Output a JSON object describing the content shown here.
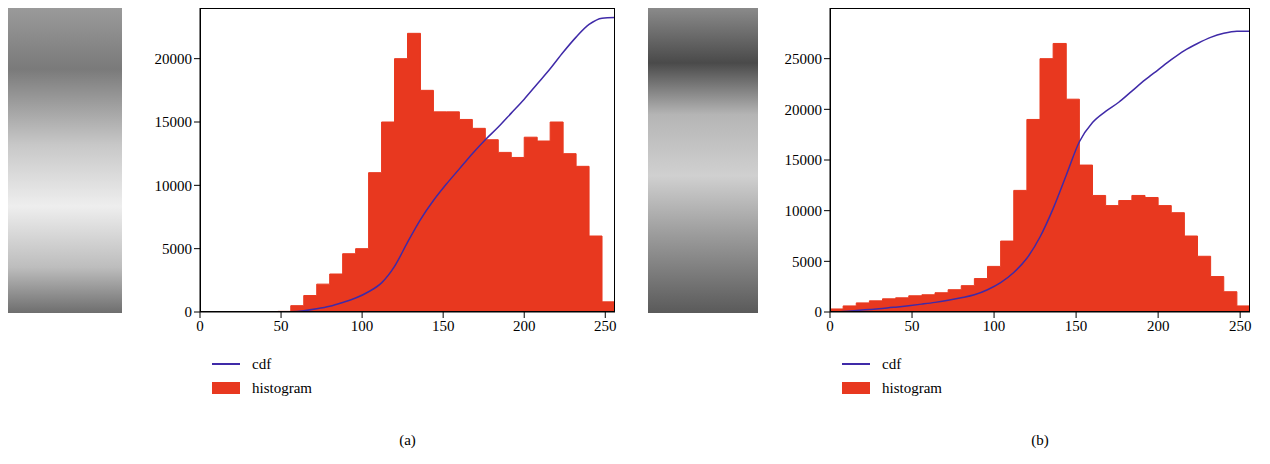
{
  "chart_data": [
    {
      "type": "histogram",
      "title": "(a)",
      "legend": "bottom",
      "grid": false,
      "xlim": [
        0,
        256
      ],
      "xticks": [
        0,
        50,
        100,
        150,
        200,
        250
      ],
      "ylim": [
        0,
        24000
      ],
      "yticks": [
        0,
        5000,
        10000,
        15000,
        20000
      ],
      "series": [
        {
          "name": "cdf",
          "type": "line",
          "color": "#3f2aa8",
          "x": [
            0,
            8,
            16,
            24,
            32,
            40,
            48,
            56,
            64,
            72,
            80,
            88,
            96,
            104,
            112,
            120,
            128,
            136,
            144,
            152,
            160,
            168,
            176,
            184,
            192,
            200,
            208,
            216,
            224,
            232,
            240,
            248,
            256
          ],
          "values": [
            0,
            0,
            0,
            0,
            0,
            0,
            0,
            20,
            100,
            250,
            450,
            750,
            1100,
            1600,
            2300,
            3600,
            5500,
            7300,
            8800,
            10100,
            11300,
            12500,
            13600,
            14600,
            15700,
            16800,
            18000,
            19200,
            20500,
            21700,
            22700,
            23200,
            23250
          ]
        },
        {
          "name": "histogram",
          "type": "histogram",
          "color": "#e8381f",
          "bins": [
            0,
            8,
            16,
            24,
            32,
            40,
            48,
            56,
            64,
            72,
            80,
            88,
            96,
            104,
            112,
            120,
            128,
            136,
            144,
            152,
            160,
            168,
            176,
            184,
            192,
            200,
            208,
            216,
            224,
            232,
            240,
            248,
            256
          ],
          "values": [
            0,
            0,
            0,
            0,
            0,
            0,
            50,
            500,
            1300,
            2200,
            3000,
            4600,
            5000,
            11000,
            15000,
            20000,
            22000,
            17500,
            15800,
            15800,
            15200,
            14500,
            13600,
            12600,
            12200,
            13800,
            13500,
            15000,
            12500,
            11500,
            6000,
            800
          ]
        }
      ]
    },
    {
      "type": "histogram",
      "title": "(b)",
      "legend": "bottom",
      "grid": false,
      "xlim": [
        0,
        256
      ],
      "xticks": [
        0,
        50,
        100,
        150,
        200,
        250
      ],
      "ylim": [
        0,
        30000
      ],
      "yticks": [
        0,
        5000,
        10000,
        15000,
        20000,
        25000
      ],
      "series": [
        {
          "name": "cdf",
          "type": "line",
          "color": "#3f2aa8",
          "x": [
            0,
            8,
            16,
            24,
            32,
            40,
            48,
            56,
            64,
            72,
            80,
            88,
            96,
            104,
            112,
            120,
            128,
            136,
            144,
            152,
            160,
            168,
            176,
            184,
            192,
            200,
            208,
            216,
            224,
            232,
            240,
            248,
            256
          ],
          "values": [
            0,
            60,
            150,
            250,
            350,
            480,
            620,
            780,
            950,
            1150,
            1400,
            1700,
            2200,
            2900,
            3900,
            5300,
            7400,
            10200,
            13500,
            16800,
            18700,
            19800,
            20700,
            21800,
            22900,
            23900,
            24900,
            25800,
            26500,
            27100,
            27500,
            27700,
            27700
          ]
        },
        {
          "name": "histogram",
          "type": "histogram",
          "color": "#e8381f",
          "bins": [
            0,
            8,
            16,
            24,
            32,
            40,
            48,
            56,
            64,
            72,
            80,
            88,
            96,
            104,
            112,
            120,
            128,
            136,
            144,
            152,
            160,
            168,
            176,
            184,
            192,
            200,
            208,
            216,
            224,
            232,
            240,
            248,
            256
          ],
          "values": [
            300,
            600,
            900,
            1100,
            1300,
            1400,
            1600,
            1700,
            1900,
            2200,
            2600,
            3300,
            4500,
            7000,
            12000,
            19000,
            25000,
            26500,
            21000,
            14500,
            11500,
            10500,
            11000,
            11500,
            11300,
            10500,
            9800,
            7500,
            5500,
            3500,
            2000,
            600
          ]
        }
      ]
    }
  ]
}
